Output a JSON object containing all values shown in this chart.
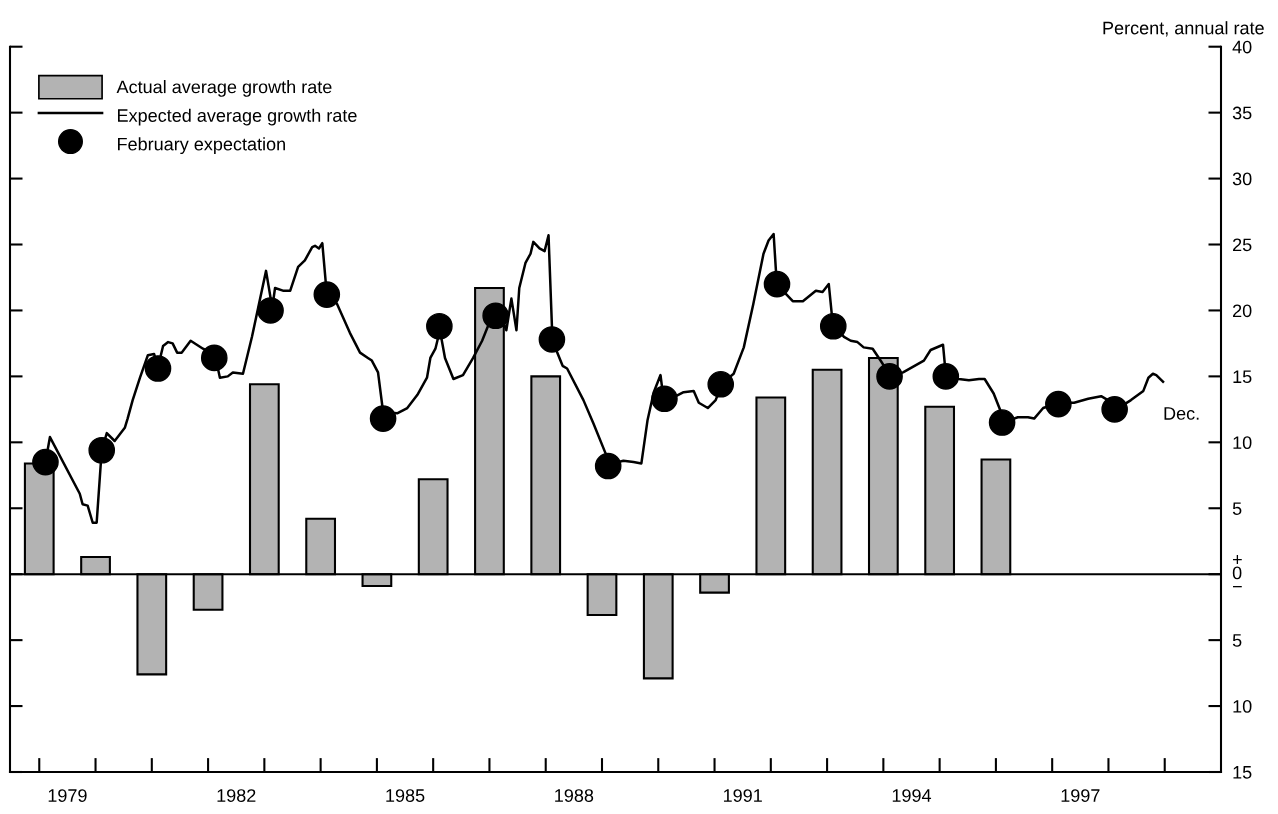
{
  "chart_data": {
    "type": "bar",
    "ylabel": "Percent, annual rate",
    "xlim": [
      1978.48,
      2000.0
    ],
    "ylim": [
      -15,
      40
    ],
    "xticks": [
      {
        "value": 1979,
        "label": null
      },
      {
        "value": 1980,
        "label": null
      },
      {
        "value": 1981,
        "label": null
      },
      {
        "value": 1982,
        "label": null
      },
      {
        "value": 1983,
        "label": null
      },
      {
        "value": 1984,
        "label": null
      },
      {
        "value": 1985,
        "label": null
      },
      {
        "value": 1986,
        "label": null
      },
      {
        "value": 1987,
        "label": null
      },
      {
        "value": 1988,
        "label": null
      },
      {
        "value": 1989,
        "label": null
      },
      {
        "value": 1990,
        "label": null
      },
      {
        "value": 1991,
        "label": null
      },
      {
        "value": 1992,
        "label": null
      },
      {
        "value": 1993,
        "label": null
      },
      {
        "value": 1994,
        "label": null
      },
      {
        "value": 1995,
        "label": null
      },
      {
        "value": 1996,
        "label": null
      },
      {
        "value": 1997,
        "label": null
      },
      {
        "value": 1998,
        "label": null
      },
      {
        "value": 1999,
        "label": null
      },
      {
        "value": 1979.5,
        "label": "1979"
      },
      {
        "value": 1982.5,
        "label": "1982"
      },
      {
        "value": 1985.5,
        "label": "1985"
      },
      {
        "value": 1988.5,
        "label": "1988"
      },
      {
        "value": 1991.5,
        "label": "1991"
      },
      {
        "value": 1994.5,
        "label": "1994"
      },
      {
        "value": 1997.5,
        "label": "1997"
      }
    ],
    "yticks": [
      {
        "value": -15,
        "label": "15"
      },
      {
        "value": -10,
        "label": "10"
      },
      {
        "value": -5,
        "label": "5"
      },
      {
        "value": 0,
        "label": "+\n0\n−"
      },
      5,
      10,
      15,
      20,
      25,
      30,
      35,
      40
    ],
    "grid": false,
    "legend": "top left",
    "ref_lines": [
      {
        "axis": "y",
        "value": 0,
        "label": null,
        "color": "#000000"
      }
    ],
    "annotations": [
      {
        "text": "Dec.",
        "x": 1998.97,
        "y": 14.6
      }
    ],
    "series": [
      {
        "name": "Actual average growth rate",
        "color": "#b3b3b3",
        "x": [
          1979,
          1980,
          1981,
          1982,
          1983,
          1984,
          1985,
          1986,
          1987,
          1988,
          1989,
          1990,
          1991,
          1992,
          1993,
          1994,
          1995,
          1996
        ],
        "values": [
          8.4,
          1.3,
          -7.6,
          -2.7,
          14.4,
          4.2,
          -0.9,
          7.2,
          21.7,
          15.0,
          -3.1,
          -7.9,
          -1.4,
          13.4,
          15.5,
          16.4,
          12.7,
          8.7
        ]
      },
      {
        "name": "Expected average growth rate",
        "type": "line",
        "color": "#000000",
        "marker": "none",
        "line_style": "solid",
        "x": [
          1979.11,
          1979.19,
          1979.72,
          1979.77,
          1979.86,
          1979.95,
          1980.02,
          1980.11,
          1980.2,
          1980.34,
          1980.52,
          1980.57,
          1980.66,
          1980.79,
          1980.93,
          1981.04,
          1981.11,
          1981.2,
          1981.29,
          1981.37,
          1981.45,
          1981.53,
          1981.69,
          1981.91,
          1982.09,
          1982.17,
          1982.21,
          1982.35,
          1982.44,
          1982.62,
          1982.78,
          1982.89,
          1983.03,
          1983.14,
          1983.19,
          1983.33,
          1983.46,
          1983.6,
          1983.72,
          1983.85,
          1983.9,
          1983.97,
          1984.03,
          1984.1,
          1984.29,
          1984.52,
          1984.7,
          1984.84,
          1984.91,
          1985.02,
          1985.11,
          1985.36,
          1985.54,
          1985.72,
          1985.89,
          1985.95,
          1986.04,
          1986.12,
          1986.21,
          1986.36,
          1986.53,
          1986.71,
          1986.87,
          1987.01,
          1987.16,
          1987.3,
          1987.39,
          1987.48,
          1987.53,
          1987.64,
          1987.73,
          1987.78,
          1987.89,
          1987.98,
          1988.05,
          1988.12,
          1988.3,
          1988.38,
          1988.67,
          1988.85,
          1989.06,
          1989.19,
          1989.38,
          1989.56,
          1989.7,
          1989.81,
          1989.92,
          1990.04,
          1990.09,
          1990.27,
          1990.45,
          1990.63,
          1990.72,
          1990.88,
          1991.02,
          1991.14,
          1991.34,
          1991.52,
          1991.69,
          1991.87,
          1991.96,
          1992.05,
          1992.1,
          1992.17,
          1992.39,
          1992.57,
          1992.8,
          1992.92,
          1993.03,
          1993.1,
          1993.3,
          1993.42,
          1993.54,
          1993.65,
          1993.81,
          1993.95,
          1994.13,
          1994.35,
          1994.72,
          1994.84,
          1995.06,
          1995.11,
          1995.34,
          1995.52,
          1995.7,
          1995.8,
          1995.96,
          1996.09,
          1996.14,
          1996.39,
          1996.57,
          1996.68,
          1996.84,
          1997.12,
          1997.39,
          1997.64,
          1997.87,
          1997.99,
          1998.14,
          1998.4,
          1998.62,
          1998.71,
          1998.79,
          1998.85,
          1998.97
        ],
        "values": [
          8.5,
          10.4,
          6.1,
          5.3,
          5.2,
          3.9,
          3.9,
          9.4,
          10.7,
          10.1,
          11.1,
          11.8,
          13.2,
          14.9,
          16.6,
          16.7,
          15.7,
          17.3,
          17.6,
          17.5,
          16.8,
          16.8,
          17.7,
          17.1,
          16.7,
          15.7,
          14.9,
          15.0,
          15.3,
          15.2,
          18.0,
          20.2,
          23.0,
          20.2,
          21.7,
          21.5,
          21.5,
          23.3,
          23.8,
          24.8,
          24.9,
          24.7,
          25.1,
          21.7,
          20.5,
          18.3,
          16.8,
          16.4,
          16.2,
          15.3,
          12.3,
          12.2,
          12.6,
          13.6,
          14.9,
          16.4,
          17.1,
          18.5,
          16.4,
          14.8,
          15.1,
          16.4,
          17.7,
          19.2,
          20.0,
          18.5,
          20.9,
          18.5,
          21.7,
          23.6,
          24.3,
          25.2,
          24.7,
          24.5,
          25.7,
          17.7,
          15.8,
          15.6,
          13.2,
          11.4,
          9.2,
          8.4,
          8.6,
          8.5,
          8.4,
          11.7,
          13.8,
          15.1,
          13.4,
          13.4,
          13.8,
          13.9,
          13.0,
          12.6,
          13.2,
          14.5,
          15.2,
          17.2,
          20.5,
          24.3,
          25.3,
          25.8,
          22.4,
          21.7,
          20.7,
          20.7,
          21.5,
          21.4,
          22.0,
          19.0,
          18.0,
          17.7,
          17.6,
          17.2,
          17.1,
          16.2,
          15.0,
          15.3,
          16.2,
          17.0,
          17.4,
          15.1,
          14.8,
          14.7,
          14.8,
          14.8,
          13.7,
          12.3,
          11.5,
          11.9,
          11.9,
          11.8,
          12.6,
          13.0,
          13.0,
          13.3,
          13.5,
          13.2,
          12.5,
          13.2,
          13.9,
          14.9,
          15.2,
          15.1,
          14.6
        ]
      },
      {
        "name": "February expectation",
        "type": "scatter",
        "color": "#000000",
        "marker": "circle",
        "x": [
          1979.11,
          1980.11,
          1981.11,
          1982.11,
          1983.11,
          1984.11,
          1985.11,
          1986.11,
          1987.11,
          1988.11,
          1989.11,
          1990.11,
          1991.11,
          1992.11,
          1993.11,
          1994.11,
          1995.11,
          1996.11,
          1997.11,
          1998.11
        ],
        "values": [
          8.5,
          9.4,
          15.6,
          16.4,
          20.0,
          21.2,
          11.8,
          18.8,
          19.6,
          17.8,
          8.2,
          13.3,
          14.4,
          22.0,
          18.8,
          15.0,
          15.0,
          11.5,
          12.9,
          12.5
        ]
      }
    ]
  }
}
